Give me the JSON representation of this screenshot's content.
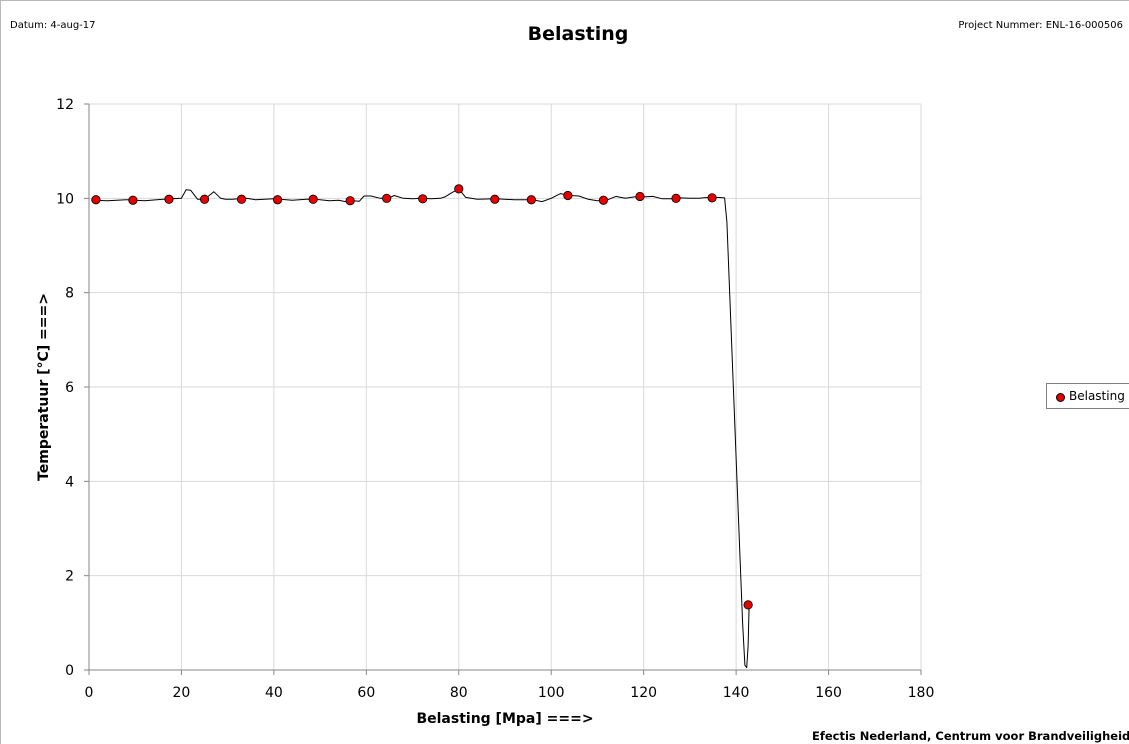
{
  "header": {
    "date_text": "Datum: 4-aug-17",
    "project_text": "Project Nummer: ENL-16-000506"
  },
  "footer": {
    "text": "Efectis Nederland, Centrum voor Brandveiligheid"
  },
  "chart_data": {
    "type": "line",
    "title": "Belasting",
    "xlabel": "Belasting [Mpa] ===>",
    "ylabel": "Temperatuur [°C] ===>",
    "xlim": [
      0,
      180
    ],
    "ylim": [
      0,
      12
    ],
    "xticks": [
      0,
      20,
      40,
      60,
      80,
      100,
      120,
      140,
      160,
      180
    ],
    "yticks": [
      0,
      2,
      4,
      6,
      8,
      10,
      12
    ],
    "grid": true,
    "legend_position": "right",
    "colors": {
      "line": "#000000",
      "marker": "#e60000",
      "grid": "#d9d9d9"
    },
    "series": [
      {
        "name": "Belasting",
        "line": {
          "x": [
            0.5,
            4,
            8,
            12,
            16,
            18,
            20,
            21,
            22,
            23.5,
            25,
            27,
            28.5,
            29.5,
            31,
            34,
            36,
            38,
            40,
            44,
            47,
            49,
            52,
            54,
            55.5,
            57,
            58.5,
            59.5,
            61,
            63,
            65,
            66,
            68,
            70,
            72,
            74,
            76,
            77,
            78.5,
            80,
            81.5,
            84,
            88,
            92,
            96,
            98,
            100,
            102,
            104,
            106,
            108,
            110,
            112,
            114,
            116,
            118,
            120,
            122,
            124,
            126,
            128,
            130,
            132,
            134,
            136,
            137.5,
            138,
            139,
            140,
            140.8,
            141.4,
            141.9,
            142.3,
            142.6,
            142.8
          ],
          "y": [
            9.96,
            9.95,
            9.97,
            9.95,
            9.98,
            9.99,
            10.0,
            10.18,
            10.17,
            9.98,
            9.98,
            10.14,
            10.0,
            9.98,
            9.98,
            10.0,
            9.97,
            9.98,
            9.99,
            9.96,
            9.98,
            9.98,
            9.95,
            9.96,
            9.93,
            9.95,
            9.94,
            10.05,
            10.05,
            10.0,
            10.01,
            10.06,
            10.0,
            9.99,
            10.0,
            9.99,
            10.0,
            10.03,
            10.12,
            10.2,
            10.02,
            9.98,
            9.99,
            9.97,
            9.97,
            9.93,
            10.0,
            10.1,
            10.06,
            10.05,
            9.98,
            9.95,
            9.96,
            10.04,
            10.0,
            10.03,
            10.03,
            10.04,
            9.99,
            9.99,
            10.01,
            10.0,
            10.0,
            10.02,
            10.02,
            10.01,
            9.5,
            7.0,
            4.5,
            2.5,
            1.0,
            0.1,
            0.05,
            0.5,
            1.35
          ]
        },
        "markers": {
          "x": [
            1.5,
            9.5,
            17.3,
            25.0,
            33.0,
            40.8,
            48.5,
            56.5,
            64.4,
            72.2,
            80.0,
            87.8,
            95.7,
            103.6,
            111.3,
            119.2,
            127.0,
            134.8,
            142.6
          ],
          "y": [
            9.97,
            9.96,
            9.98,
            9.98,
            9.98,
            9.97,
            9.98,
            9.95,
            10.0,
            9.99,
            10.2,
            9.98,
            9.97,
            10.06,
            9.96,
            10.04,
            10.0,
            10.01,
            1.38
          ]
        }
      }
    ]
  }
}
